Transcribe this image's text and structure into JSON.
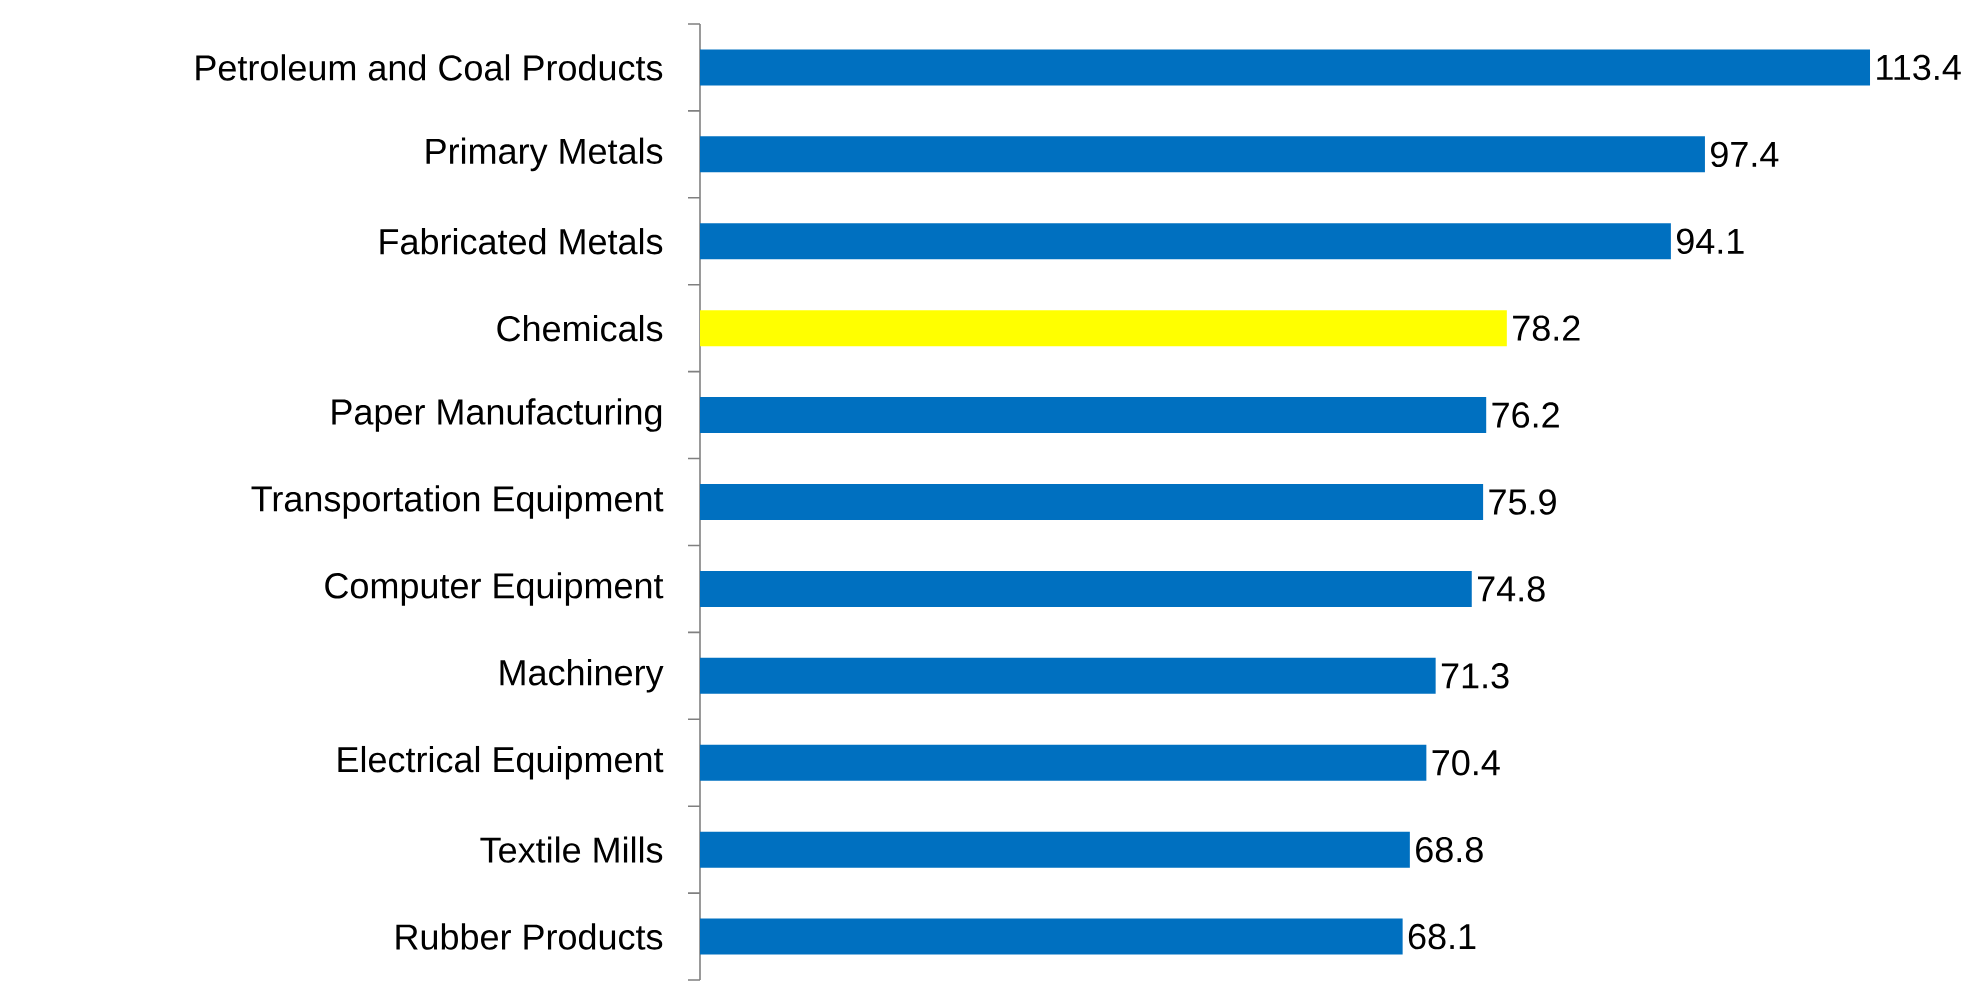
{
  "chart_data": {
    "type": "bar",
    "orientation": "horizontal",
    "categories": [
      "Petroleum and Coal Products",
      "Primary Metals",
      "Fabricated Metals",
      "Chemicals",
      "Paper Manufacturing",
      "Transportation Equipment",
      "Computer Equipment",
      "Machinery",
      "Electrical Equipment",
      "Textile Mills",
      "Rubber Products"
    ],
    "values": [
      113.4,
      97.4,
      94.1,
      78.2,
      76.2,
      75.9,
      74.8,
      71.3,
      70.4,
      68.8,
      68.1
    ],
    "colors": [
      "#0070c0",
      "#0070c0",
      "#0070c0",
      "#ffff00",
      "#0070c0",
      "#0070c0",
      "#0070c0",
      "#0070c0",
      "#0070c0",
      "#0070c0",
      "#0070c0"
    ],
    "value_labels": [
      "113.4",
      "97.4",
      "94.1",
      "78.2",
      "76.2",
      "75.9",
      "74.8",
      "71.3",
      "70.4",
      "68.8",
      "68.1"
    ]
  }
}
